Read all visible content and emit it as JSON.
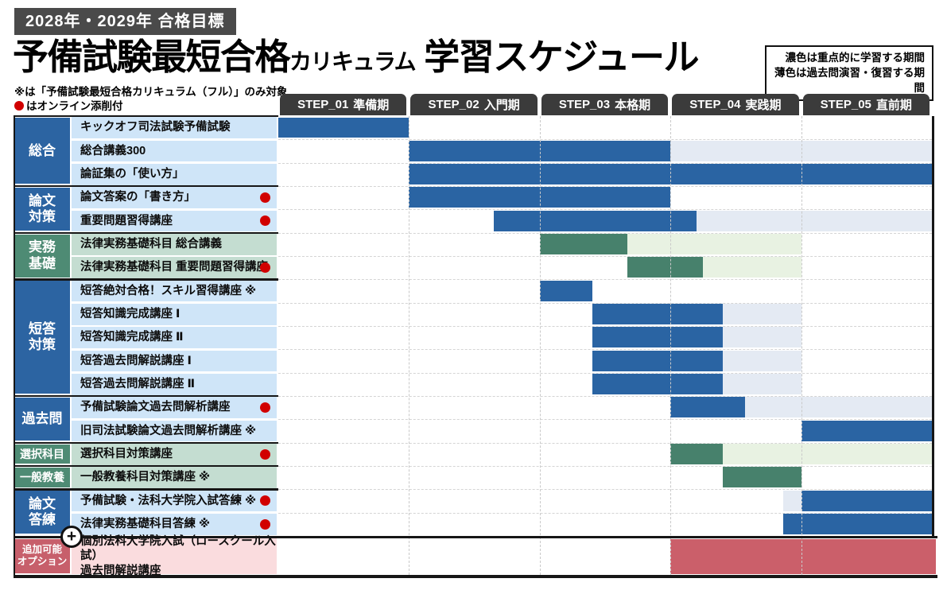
{
  "header": {
    "badge": "2028年・2029年 合格目標",
    "title_main": "予備試験最短合格",
    "title_sub": "カリキュラム",
    "title_tail": " 学習スケジュール",
    "note1": "※は「予備試験最短合格カリキュラム（フル）」のみ対象",
    "note2_icon": "red-circle",
    "note2": "はオンライン添削付",
    "plus_icon": "+"
  },
  "legend": {
    "line1": "濃色は重点的に学習する期間",
    "line2": "薄色は過去問演習・復習する期間"
  },
  "steps": [
    {
      "code": "STEP_01",
      "name": "準備期"
    },
    {
      "code": "STEP_02",
      "name": "入門期"
    },
    {
      "code": "STEP_03",
      "name": "本格期"
    },
    {
      "code": "STEP_04",
      "name": "実践期"
    },
    {
      "code": "STEP_05",
      "name": "直前期"
    }
  ],
  "colors": {
    "dark_blue": "#2a64a3",
    "light_blue": "#e4eaf3",
    "dark_green": "#47816c",
    "light_green": "#e8f2e2",
    "option_red": "#cb5f6a",
    "sidebar_blue": "#2c64a2",
    "sidebar_green": "#4e8b74",
    "sidebar_red": "#c75f6b",
    "label_blue": "#cfe5f8",
    "label_green": "#c4ddd1",
    "label_pink": "#fadcde",
    "tab_gray": "#3b3b3b",
    "badge_gray": "#4a4a4a",
    "dot_red": "#d10000"
  },
  "categories": [
    {
      "label": "総合",
      "tone": "blue",
      "row_span": 3
    },
    {
      "label": "論文\n対策",
      "tone": "blue",
      "row_span": 2
    },
    {
      "label": "実務\n基礎",
      "tone": "green",
      "row_span": 2
    },
    {
      "label": "短答\n対策",
      "tone": "blue",
      "row_span": 5
    },
    {
      "label": "過去問",
      "tone": "blue",
      "row_span": 2
    },
    {
      "label": "選択科目",
      "tone": "green",
      "row_span": 1,
      "small": true
    },
    {
      "label": "一般教養",
      "tone": "green",
      "row_span": 1,
      "small": true
    },
    {
      "label": "論文\n答練",
      "tone": "blue",
      "row_span": 2
    },
    {
      "label": "追加可能\nオプション",
      "tone": "red",
      "row_span": 1,
      "tiny": true,
      "option": true
    }
  ],
  "chart_data": {
    "type": "gantt",
    "x_unit": "STEP columns 0-5 (STEP_01 準備期 → STEP_05 直前期)",
    "columns": [
      "STEP_01 準備期",
      "STEP_02 入門期",
      "STEP_03 本格期",
      "STEP_04 実践期",
      "STEP_05 直前期"
    ],
    "shade_legend": {
      "dark": "重点的に学習する期間",
      "light": "過去問演習・復習する期間"
    },
    "rows": [
      {
        "category": "総合",
        "label": "キックオフ司法試験予備試験",
        "tone": "blue",
        "dot": false,
        "segments": [
          {
            "start": 0,
            "end": 1,
            "shade": "dark"
          }
        ]
      },
      {
        "category": "総合",
        "label": "総合講義300",
        "tone": "blue",
        "dot": false,
        "segments": [
          {
            "start": 1,
            "end": 3,
            "shade": "dark"
          },
          {
            "start": 3,
            "end": 5,
            "shade": "light"
          }
        ]
      },
      {
        "category": "総合",
        "label": "論証集の「使い方」",
        "tone": "blue",
        "dot": false,
        "segments": [
          {
            "start": 1,
            "end": 5,
            "shade": "dark"
          }
        ]
      },
      {
        "category": "論文対策",
        "label": "論文答案の「書き方」",
        "tone": "blue",
        "dot": true,
        "segments": [
          {
            "start": 1,
            "end": 3,
            "shade": "dark"
          }
        ]
      },
      {
        "category": "論文対策",
        "label": "重要問題習得講座",
        "tone": "blue",
        "dot": true,
        "segments": [
          {
            "start": 1.65,
            "end": 3.2,
            "shade": "dark"
          },
          {
            "start": 3.2,
            "end": 5,
            "shade": "light"
          }
        ]
      },
      {
        "category": "実務基礎",
        "label": "法律実務基礎科目 総合講義",
        "tone": "green",
        "dot": false,
        "segments": [
          {
            "start": 2,
            "end": 2.67,
            "shade": "dark"
          },
          {
            "start": 2.67,
            "end": 4,
            "shade": "light"
          }
        ]
      },
      {
        "category": "実務基礎",
        "label": "法律実務基礎科目 重要問題習得講座",
        "tone": "green",
        "dot": true,
        "segments": [
          {
            "start": 2.67,
            "end": 3.25,
            "shade": "dark"
          },
          {
            "start": 3.25,
            "end": 4,
            "shade": "light"
          }
        ]
      },
      {
        "category": "短答対策",
        "label": "短答絶対合格！スキル習得講座 ※",
        "tone": "blue",
        "dot": false,
        "segments": [
          {
            "start": 2,
            "end": 2.4,
            "shade": "dark"
          }
        ]
      },
      {
        "category": "短答対策",
        "label": "短答知識完成講座 Ⅰ",
        "tone": "blue",
        "dot": false,
        "segments": [
          {
            "start": 2.4,
            "end": 3.4,
            "shade": "dark"
          },
          {
            "start": 3.4,
            "end": 4,
            "shade": "light"
          }
        ]
      },
      {
        "category": "短答対策",
        "label": "短答知識完成講座 Ⅱ",
        "tone": "blue",
        "dot": false,
        "segments": [
          {
            "start": 2.4,
            "end": 3.4,
            "shade": "dark"
          },
          {
            "start": 3.4,
            "end": 4,
            "shade": "light"
          }
        ]
      },
      {
        "category": "短答対策",
        "label": "短答過去問解説講座 Ⅰ",
        "tone": "blue",
        "dot": false,
        "segments": [
          {
            "start": 2.4,
            "end": 3.4,
            "shade": "dark"
          },
          {
            "start": 3.4,
            "end": 4,
            "shade": "light"
          }
        ]
      },
      {
        "category": "短答対策",
        "label": "短答過去問解説講座 Ⅱ",
        "tone": "blue",
        "dot": false,
        "segments": [
          {
            "start": 2.4,
            "end": 3.4,
            "shade": "dark"
          },
          {
            "start": 3.4,
            "end": 4,
            "shade": "light"
          }
        ]
      },
      {
        "category": "過去問",
        "label": "予備試験論文過去問解析講座",
        "tone": "blue",
        "dot": true,
        "segments": [
          {
            "start": 3,
            "end": 3.57,
            "shade": "dark"
          },
          {
            "start": 3.57,
            "end": 5,
            "shade": "light"
          }
        ]
      },
      {
        "category": "過去問",
        "label": "旧司法試験論文過去問解析講座 ※",
        "tone": "blue",
        "dot": false,
        "segments": [
          {
            "start": 4,
            "end": 5,
            "shade": "dark"
          }
        ]
      },
      {
        "category": "選択科目",
        "label": "選択科目対策講座",
        "tone": "green",
        "dot": true,
        "segments": [
          {
            "start": 3,
            "end": 3.4,
            "shade": "dark"
          },
          {
            "start": 3.4,
            "end": 5,
            "shade": "light"
          }
        ]
      },
      {
        "category": "一般教養",
        "label": "一般教養科目対策講座 ※",
        "tone": "green",
        "dot": false,
        "segments": [
          {
            "start": 3.4,
            "end": 4,
            "shade": "dark"
          }
        ]
      },
      {
        "category": "論文答練",
        "label": "予備試験・法科大学院入試答練 ※",
        "tone": "blue",
        "dot": true,
        "segments": [
          {
            "start": 3.86,
            "end": 4,
            "shade": "light"
          },
          {
            "start": 4,
            "end": 5,
            "shade": "dark"
          }
        ]
      },
      {
        "category": "論文答練",
        "label": "法律実務基礎科目答練 ※",
        "tone": "blue",
        "dot": true,
        "segments": [
          {
            "start": 3.86,
            "end": 5,
            "shade": "dark"
          }
        ]
      },
      {
        "category": "追加可能オプション",
        "label": "個別法科大学院入試（ロースクール入試）\n過去問解説講座",
        "tone": "pink",
        "dot": false,
        "option": true,
        "segments": [
          {
            "start": 3,
            "end": 5.03,
            "shade": "red"
          }
        ]
      }
    ]
  }
}
